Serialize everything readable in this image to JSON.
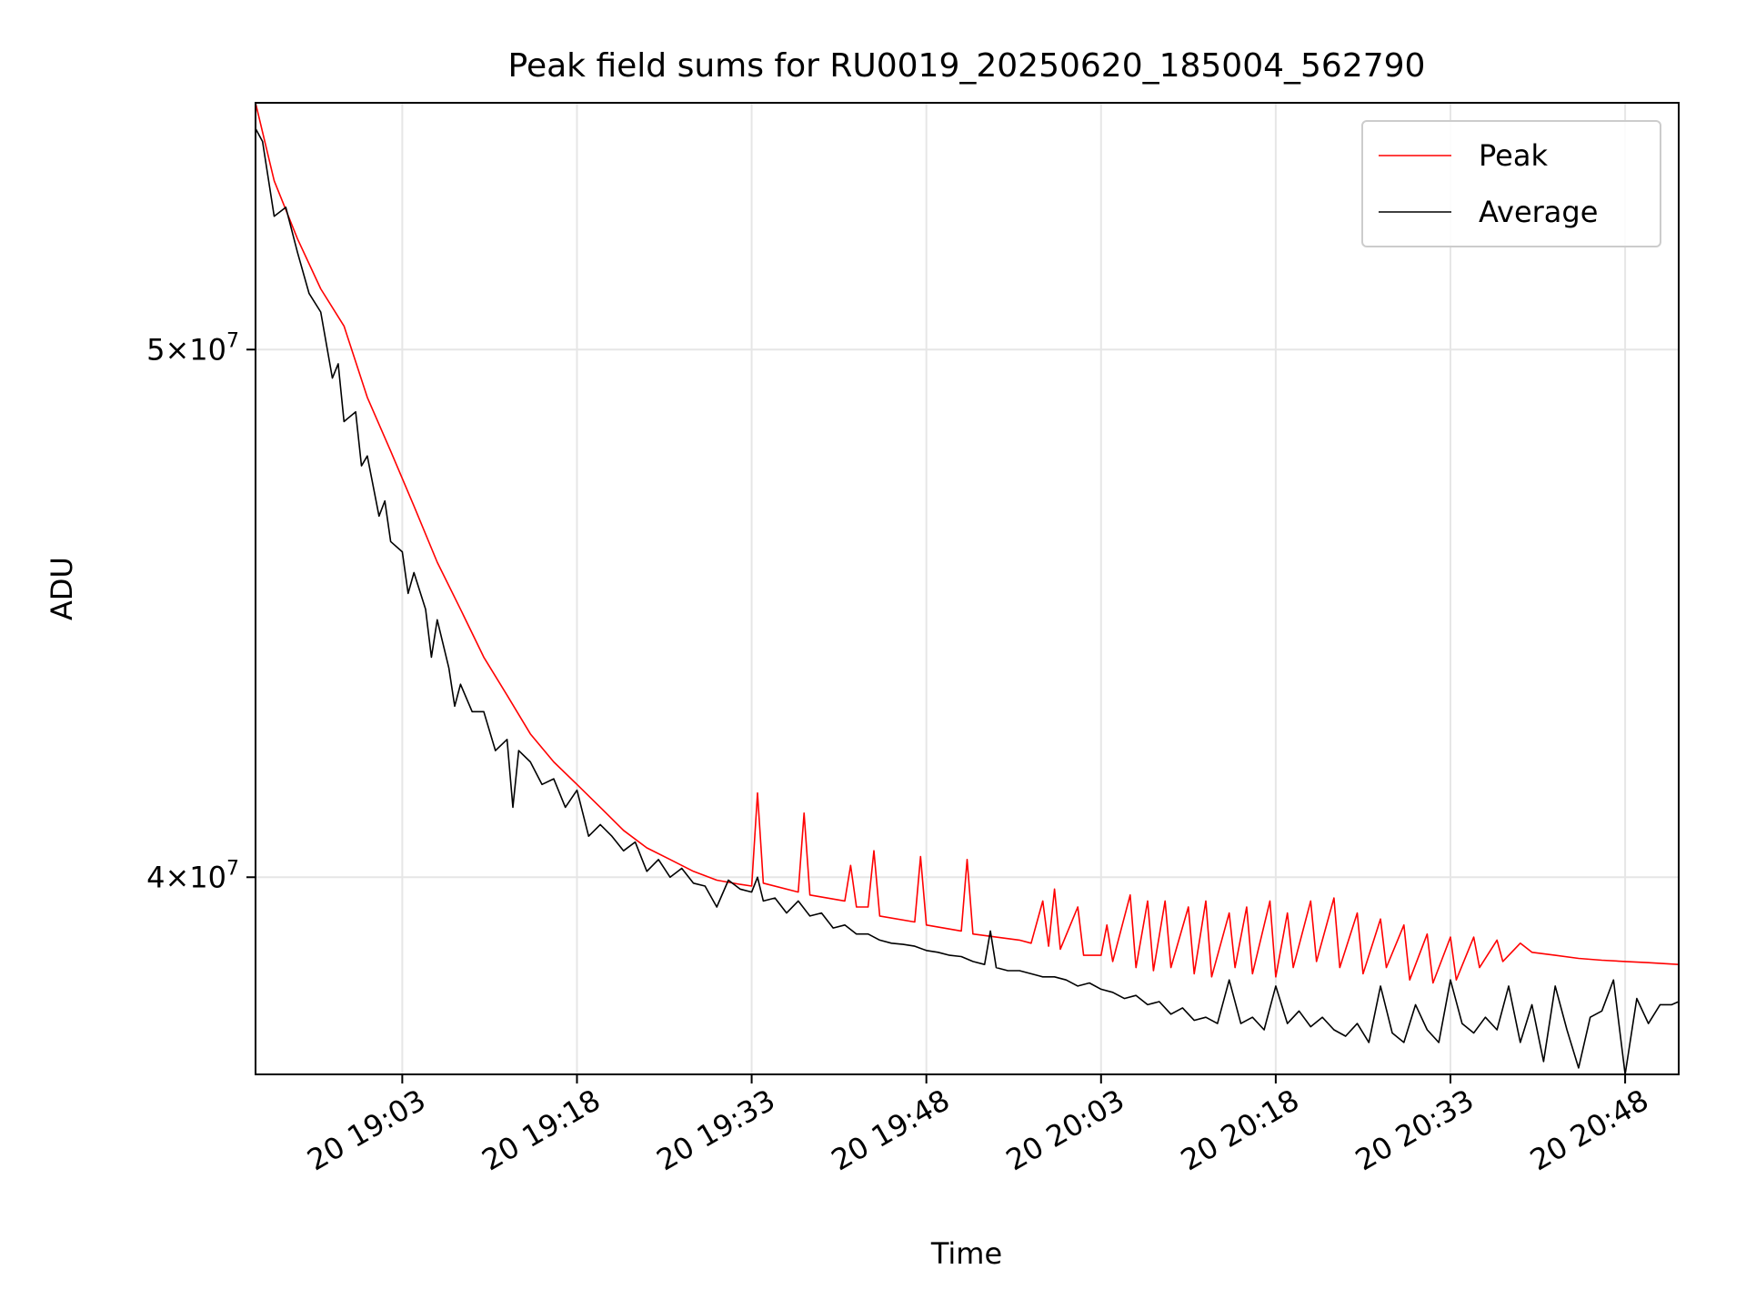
{
  "chart_data": {
    "type": "line",
    "title": "Peak field sums for RU0019_20250620_185004_562790",
    "xlabel": "Time",
    "ylabel": "ADU",
    "x_tick_labels": [
      "20 19:03",
      "20 19:18",
      "20 19:33",
      "20 19:48",
      "20 20:03",
      "20 20:18",
      "20 20:33",
      "20 20:48"
    ],
    "x_tick_minutes": [
      13,
      28,
      43,
      58,
      73,
      88,
      103,
      118
    ],
    "x_unit": "minutes after 2025-06-20 18:50",
    "xlim": [
      0.4,
      122.6
    ],
    "y_scale": "log",
    "ylim": [
      36800000,
      55500000
    ],
    "y_ticks": [
      {
        "value": 40000000,
        "mantissa": "4",
        "exponent": "7"
      },
      {
        "value": 50000000,
        "mantissa": "5",
        "exponent": "7"
      }
    ],
    "times_symbol": "×",
    "grid": true,
    "legend": {
      "placement": "top-right",
      "entries": [
        "Peak",
        "Average"
      ]
    },
    "colors": {
      "Peak": "#ff0000",
      "Average": "#000000",
      "grid": "#e6e6e6"
    },
    "series": [
      {
        "name": "Peak",
        "points": [
          [
            0.4,
            55500000
          ],
          [
            2,
            53700000
          ],
          [
            4,
            52400000
          ],
          [
            6,
            51300000
          ],
          [
            8,
            50500000
          ],
          [
            10,
            49000000
          ],
          [
            12,
            47900000
          ],
          [
            14,
            46800000
          ],
          [
            16,
            45700000
          ],
          [
            18,
            44800000
          ],
          [
            20,
            43900000
          ],
          [
            22,
            43200000
          ],
          [
            24,
            42500000
          ],
          [
            26,
            42000000
          ],
          [
            28,
            41600000
          ],
          [
            30,
            41200000
          ],
          [
            32,
            40800000
          ],
          [
            34,
            40500000
          ],
          [
            36,
            40300000
          ],
          [
            38,
            40100000
          ],
          [
            40,
            39950000
          ],
          [
            42,
            39880000
          ],
          [
            43,
            39850000
          ],
          [
            43.5,
            41450000
          ],
          [
            44,
            39900000
          ],
          [
            47,
            39750000
          ],
          [
            47.5,
            41100000
          ],
          [
            48,
            39700000
          ],
          [
            51,
            39600000
          ],
          [
            51.5,
            40200000
          ],
          [
            52,
            39500000
          ],
          [
            53,
            39500000
          ],
          [
            53.5,
            40450000
          ],
          [
            54,
            39350000
          ],
          [
            57,
            39250000
          ],
          [
            57.5,
            40350000
          ],
          [
            58,
            39200000
          ],
          [
            61,
            39100000
          ],
          [
            61.5,
            40300000
          ],
          [
            62,
            39050000
          ],
          [
            66,
            38950000
          ],
          [
            67,
            38900000
          ],
          [
            68,
            39600000
          ],
          [
            68.5,
            38850000
          ],
          [
            69,
            39800000
          ],
          [
            69.5,
            38800000
          ],
          [
            71,
            39500000
          ],
          [
            71.5,
            38700000
          ],
          [
            73,
            38700000
          ],
          [
            73.5,
            39200000
          ],
          [
            74,
            38600000
          ],
          [
            75.5,
            39700000
          ],
          [
            76,
            38500000
          ],
          [
            77,
            39600000
          ],
          [
            77.5,
            38450000
          ],
          [
            78.5,
            39600000
          ],
          [
            79,
            38500000
          ],
          [
            80.5,
            39500000
          ],
          [
            81,
            38400000
          ],
          [
            82,
            39600000
          ],
          [
            82.5,
            38350000
          ],
          [
            84,
            39400000
          ],
          [
            84.5,
            38500000
          ],
          [
            85.5,
            39500000
          ],
          [
            86,
            38400000
          ],
          [
            87.5,
            39600000
          ],
          [
            88,
            38350000
          ],
          [
            89,
            39400000
          ],
          [
            89.5,
            38500000
          ],
          [
            91,
            39600000
          ],
          [
            91.5,
            38600000
          ],
          [
            93,
            39650000
          ],
          [
            93.5,
            38500000
          ],
          [
            95,
            39400000
          ],
          [
            95.5,
            38400000
          ],
          [
            97,
            39300000
          ],
          [
            97.5,
            38500000
          ],
          [
            99,
            39200000
          ],
          [
            99.5,
            38300000
          ],
          [
            101,
            39050000
          ],
          [
            101.5,
            38250000
          ],
          [
            103,
            39000000
          ],
          [
            103.5,
            38300000
          ],
          [
            105,
            39000000
          ],
          [
            105.5,
            38500000
          ],
          [
            107,
            38950000
          ],
          [
            107.5,
            38600000
          ],
          [
            109,
            38900000
          ],
          [
            110,
            38750000
          ],
          [
            112,
            38700000
          ],
          [
            114,
            38650000
          ],
          [
            116,
            38620000
          ],
          [
            118,
            38600000
          ],
          [
            120,
            38580000
          ],
          [
            122.6,
            38550000
          ]
        ]
      },
      {
        "name": "Average",
        "points": [
          [
            0.4,
            54900000
          ],
          [
            1,
            54600000
          ],
          [
            2,
            52900000
          ],
          [
            3,
            53100000
          ],
          [
            4,
            52100000
          ],
          [
            5,
            51200000
          ],
          [
            6,
            50800000
          ],
          [
            7,
            49400000
          ],
          [
            7.5,
            49700000
          ],
          [
            8,
            48500000
          ],
          [
            9,
            48700000
          ],
          [
            9.5,
            47600000
          ],
          [
            10,
            47800000
          ],
          [
            11,
            46600000
          ],
          [
            11.5,
            46900000
          ],
          [
            12,
            46100000
          ],
          [
            13,
            45900000
          ],
          [
            13.5,
            45100000
          ],
          [
            14,
            45500000
          ],
          [
            15,
            44800000
          ],
          [
            15.5,
            43900000
          ],
          [
            16,
            44600000
          ],
          [
            17,
            43700000
          ],
          [
            17.5,
            43000000
          ],
          [
            18,
            43400000
          ],
          [
            19,
            42900000
          ],
          [
            20,
            42900000
          ],
          [
            21,
            42200000
          ],
          [
            22,
            42400000
          ],
          [
            22.5,
            41200000
          ],
          [
            23,
            42200000
          ],
          [
            24,
            42000000
          ],
          [
            25,
            41600000
          ],
          [
            26,
            41700000
          ],
          [
            27,
            41200000
          ],
          [
            28,
            41500000
          ],
          [
            29,
            40700000
          ],
          [
            30,
            40900000
          ],
          [
            31,
            40700000
          ],
          [
            32,
            40450000
          ],
          [
            33,
            40600000
          ],
          [
            34,
            40100000
          ],
          [
            35,
            40300000
          ],
          [
            36,
            40000000
          ],
          [
            37,
            40150000
          ],
          [
            38,
            39900000
          ],
          [
            39,
            39850000
          ],
          [
            40,
            39500000
          ],
          [
            41,
            39950000
          ],
          [
            42,
            39800000
          ],
          [
            43,
            39750000
          ],
          [
            43.5,
            40000000
          ],
          [
            44,
            39600000
          ],
          [
            45,
            39650000
          ],
          [
            46,
            39400000
          ],
          [
            47,
            39600000
          ],
          [
            48,
            39350000
          ],
          [
            49,
            39400000
          ],
          [
            50,
            39150000
          ],
          [
            51,
            39200000
          ],
          [
            52,
            39050000
          ],
          [
            53,
            39050000
          ],
          [
            54,
            38950000
          ],
          [
            55,
            38900000
          ],
          [
            56,
            38880000
          ],
          [
            57,
            38850000
          ],
          [
            58,
            38780000
          ],
          [
            59,
            38750000
          ],
          [
            60,
            38700000
          ],
          [
            61,
            38680000
          ],
          [
            62,
            38600000
          ],
          [
            63,
            38550000
          ],
          [
            63.5,
            39100000
          ],
          [
            64,
            38500000
          ],
          [
            65,
            38450000
          ],
          [
            66,
            38450000
          ],
          [
            67,
            38400000
          ],
          [
            68,
            38350000
          ],
          [
            69,
            38350000
          ],
          [
            70,
            38300000
          ],
          [
            71,
            38200000
          ],
          [
            72,
            38250000
          ],
          [
            73,
            38150000
          ],
          [
            74,
            38100000
          ],
          [
            75,
            38000000
          ],
          [
            76,
            38050000
          ],
          [
            77,
            37900000
          ],
          [
            78,
            37950000
          ],
          [
            79,
            37750000
          ],
          [
            80,
            37850000
          ],
          [
            81,
            37650000
          ],
          [
            82,
            37700000
          ],
          [
            83,
            37600000
          ],
          [
            84,
            38300000
          ],
          [
            85,
            37600000
          ],
          [
            86,
            37700000
          ],
          [
            87,
            37500000
          ],
          [
            88,
            38200000
          ],
          [
            89,
            37600000
          ],
          [
            90,
            37800000
          ],
          [
            91,
            37550000
          ],
          [
            92,
            37700000
          ],
          [
            93,
            37500000
          ],
          [
            94,
            37400000
          ],
          [
            95,
            37600000
          ],
          [
            96,
            37300000
          ],
          [
            97,
            38200000
          ],
          [
            98,
            37450000
          ],
          [
            99,
            37300000
          ],
          [
            100,
            37900000
          ],
          [
            101,
            37500000
          ],
          [
            102,
            37300000
          ],
          [
            103,
            38300000
          ],
          [
            104,
            37600000
          ],
          [
            105,
            37450000
          ],
          [
            106,
            37700000
          ],
          [
            107,
            37500000
          ],
          [
            108,
            38200000
          ],
          [
            109,
            37300000
          ],
          [
            110,
            37900000
          ],
          [
            111,
            37000000
          ],
          [
            112,
            38200000
          ],
          [
            113,
            37500000
          ],
          [
            114,
            36900000
          ],
          [
            115,
            37700000
          ],
          [
            116,
            37800000
          ],
          [
            117,
            38300000
          ],
          [
            118,
            36800000
          ],
          [
            119,
            38000000
          ],
          [
            120,
            37600000
          ],
          [
            121,
            37900000
          ],
          [
            122,
            37900000
          ],
          [
            122.6,
            37950000
          ]
        ]
      }
    ]
  }
}
